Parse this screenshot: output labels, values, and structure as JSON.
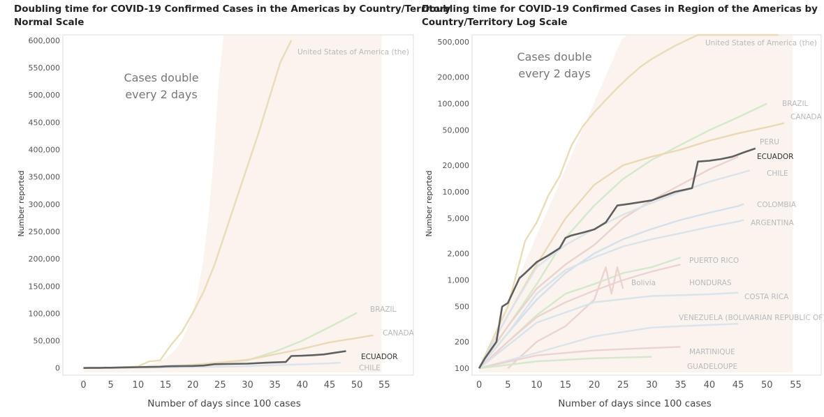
{
  "panels": [
    {
      "title_line1": "Doubling time for COVID-19 Confirmed Cases in the Americas by Country/Territory",
      "title_line2": "Normal Scale"
    },
    {
      "title_line1": "Doubling time for COVID-19 Confirmed Cases in Region of the Americas by",
      "title_line2": "Country/Territory Log Scale"
    }
  ],
  "chart_data": [
    {
      "type": "line",
      "title": "Doubling time for COVID-19 Confirmed Cases in the Americas by Country/Territory Normal Scale",
      "xlabel": "Number of days since 100 cases",
      "ylabel": "Number reported",
      "scale": "linear",
      "xlim": [
        -3,
        57
      ],
      "ylim": [
        -8000,
        610000
      ],
      "xticks": [
        0,
        5,
        10,
        15,
        20,
        25,
        30,
        35,
        40,
        45,
        50,
        55
      ],
      "yticks": [
        0,
        50000,
        100000,
        150000,
        200000,
        250000,
        300000,
        350000,
        400000,
        450000,
        500000,
        550000,
        600000
      ],
      "ytick_labels": [
        "0",
        "50,000",
        "100,000",
        "150,000",
        "200,000",
        "250,000",
        "300,000",
        "350,000",
        "400,000",
        "450,000",
        "500,000",
        "550,000",
        "600,000"
      ],
      "annotation": "Cases double every 2 days",
      "annotation_lines": [
        "Cases double",
        "every 2 days"
      ],
      "series": [
        {
          "name": "United States of America (the)",
          "label": "United States of America (the)",
          "color": "#eadcb8",
          "x": [
            0,
            5,
            10,
            12,
            14,
            16,
            18,
            20,
            22,
            24,
            26,
            28,
            30,
            32,
            34,
            36,
            38
          ],
          "y": [
            100,
            500,
            3000,
            12000,
            14000,
            42000,
            66000,
            101000,
            140000,
            190000,
            250000,
            310000,
            370000,
            430000,
            495000,
            560000,
            600000
          ]
        },
        {
          "name": "BRAZIL",
          "label": "BRAZIL",
          "color": "#d5e8cc",
          "x": [
            0,
            10,
            20,
            30,
            35,
            40,
            45,
            50
          ],
          "y": [
            100,
            1500,
            6000,
            14000,
            30000,
            50000,
            75000,
            101000
          ]
        },
        {
          "name": "CANADA",
          "label": "CANADA",
          "color": "#ecd8b4",
          "x": [
            0,
            10,
            20,
            30,
            40,
            45,
            50,
            53
          ],
          "y": [
            100,
            700,
            5000,
            15000,
            35000,
            47000,
            55000,
            60000
          ]
        },
        {
          "name": "CHILE",
          "label": "CHILE",
          "color": "#dde3ea",
          "x": [
            0,
            10,
            20,
            30,
            40,
            45,
            47
          ],
          "y": [
            100,
            400,
            1500,
            3500,
            6800,
            8500,
            9700
          ]
        },
        {
          "name": "ECUADOR",
          "label": "ECUADOR",
          "color": "#5f5f5f",
          "x": [
            0,
            1,
            3,
            4,
            5,
            7,
            8,
            10,
            12,
            14,
            15,
            16,
            18,
            20,
            22,
            24,
            26,
            30,
            34,
            37,
            38,
            40,
            42,
            44,
            46,
            48
          ],
          "y": [
            100,
            130,
            200,
            500,
            550,
            1050,
            1200,
            1600,
            1900,
            2300,
            3000,
            3200,
            3450,
            3750,
            4500,
            7000,
            7300,
            8000,
            10000,
            11000,
            22000,
            22500,
            23500,
            25000,
            28000,
            31000
          ]
        }
      ]
    },
    {
      "type": "line",
      "title": "Doubling time for COVID-19 Confirmed Cases in Region of the Americas by Country/Territory Log Scale",
      "xlabel": "Number of days since 100 cases",
      "ylabel": "Number reported",
      "scale": "log",
      "xlim": [
        -0.5,
        57
      ],
      "ylim": [
        90,
        600000
      ],
      "xticks": [
        0,
        5,
        10,
        15,
        20,
        25,
        30,
        35,
        40,
        45,
        50,
        55
      ],
      "yticks": [
        100,
        200,
        500,
        1000,
        2000,
        5000,
        10000,
        20000,
        50000,
        100000,
        200000,
        500000
      ],
      "ytick_labels": [
        "100",
        "200",
        "500",
        "1,000",
        "2,000",
        "5,000",
        "10,000",
        "20,000",
        "50,000",
        "100,000",
        "200,000",
        "500,000"
      ],
      "annotation": "Cases double every 2 days",
      "annotation_lines": [
        "Cases double",
        "every 2 days"
      ],
      "series": [
        {
          "name": "United States of America (the)",
          "label": "United States of America (the)",
          "color": "#eadcb8",
          "x": [
            0,
            5,
            8,
            10,
            12,
            14,
            16,
            18,
            20,
            22,
            24,
            26,
            28,
            30,
            32,
            34,
            36,
            38,
            40,
            44,
            48,
            52
          ],
          "y": [
            100,
            500,
            2800,
            4500,
            9000,
            15000,
            33000,
            55000,
            80000,
            110000,
            150000,
            200000,
            260000,
            320000,
            380000,
            450000,
            520000,
            600000,
            650000,
            700000,
            750000,
            800000
          ]
        },
        {
          "name": "BRAZIL",
          "label": "BRAZIL",
          "color": "#d5e8cc",
          "x": [
            0,
            5,
            10,
            15,
            20,
            25,
            30,
            35,
            40,
            45,
            50
          ],
          "y": [
            100,
            300,
            900,
            3000,
            7000,
            14000,
            23000,
            34000,
            50000,
            70000,
            100000
          ]
        },
        {
          "name": "CANADA",
          "label": "CANADA",
          "color": "#ecd8b4",
          "x": [
            0,
            5,
            10,
            15,
            20,
            25,
            30,
            35,
            40,
            45,
            50,
            53
          ],
          "y": [
            100,
            400,
            1500,
            5000,
            12000,
            20000,
            25000,
            30000,
            38000,
            46000,
            54000,
            60000
          ]
        },
        {
          "name": "PERU",
          "label": "PERU",
          "color": "#ead3cc",
          "x": [
            0,
            5,
            10,
            15,
            20,
            25,
            30,
            35,
            40,
            45
          ],
          "y": [
            100,
            300,
            800,
            1500,
            2500,
            5000,
            8000,
            12000,
            18000,
            25000
          ]
        },
        {
          "name": "CHILE",
          "label": "CHILE",
          "color": "#dde3ea",
          "x": [
            0,
            5,
            10,
            15,
            20,
            25,
            30,
            35,
            40,
            45,
            47
          ],
          "y": [
            100,
            400,
            1400,
            2500,
            3800,
            5500,
            7500,
            10000,
            13000,
            16000,
            17500
          ]
        },
        {
          "name": "COLOMBIA",
          "label": "COLOMBIA",
          "color": "#d5e0ea",
          "x": [
            0,
            5,
            10,
            15,
            20,
            25,
            30,
            35,
            40,
            45,
            46
          ],
          "y": [
            100,
            250,
            600,
            1200,
            2000,
            2900,
            3800,
            4800,
            5800,
            6900,
            7300
          ]
        },
        {
          "name": "ARGENTINA",
          "label": "ARGENTINA",
          "color": "#dbe3ea",
          "x": [
            0,
            5,
            10,
            15,
            20,
            25,
            30,
            35,
            40,
            45,
            46
          ],
          "y": [
            100,
            250,
            700,
            1300,
            1800,
            2400,
            2900,
            3400,
            4000,
            4600,
            4800
          ]
        },
        {
          "name": "PUERTO RICO",
          "label": "PUERTO RICO",
          "color": "#d5e8cc",
          "x": [
            0,
            5,
            10,
            15,
            20,
            25,
            30,
            35
          ],
          "y": [
            100,
            200,
            400,
            700,
            900,
            1200,
            1400,
            1800
          ]
        },
        {
          "name": "Bolivia",
          "label": "Bolivia",
          "color": "#ecd3cf",
          "x": [
            5,
            10,
            15,
            20,
            22,
            23,
            24,
            25
          ],
          "y": [
            100,
            200,
            300,
            600,
            1400,
            700,
            1400,
            800
          ]
        },
        {
          "name": "HONDURAS",
          "label": "HONDURAS",
          "color": "#ecd3cf",
          "x": [
            0,
            5,
            10,
            15,
            20,
            25,
            30,
            35
          ],
          "y": [
            100,
            200,
            380,
            560,
            760,
            1000,
            1250,
            1500
          ]
        },
        {
          "name": "COSTA RICA",
          "label": "COSTA RICA",
          "color": "#d9e3ea",
          "x": [
            0,
            10,
            20,
            30,
            40,
            45
          ],
          "y": [
            100,
            330,
            560,
            660,
            690,
            720
          ]
        },
        {
          "name": "VENEZUELA (BOLIVARIAN REPUBLIC OF)",
          "label": "VENEZUELA (BOLIVARIAN REPUBLIC OF)",
          "color": "#dde3ea",
          "x": [
            0,
            10,
            20,
            30,
            35,
            40,
            45
          ],
          "y": [
            100,
            150,
            230,
            290,
            300,
            310,
            320
          ]
        },
        {
          "name": "MARTINIQUE",
          "label": "MARTINIQUE",
          "color": "#ecd3cf",
          "x": [
            0,
            10,
            20,
            30,
            35
          ],
          "y": [
            100,
            140,
            160,
            170,
            175
          ]
        },
        {
          "name": "GUADELOUPE",
          "label": "GUADELOUPE",
          "color": "#d5e8cc",
          "x": [
            0,
            10,
            20,
            30
          ],
          "y": [
            100,
            120,
            130,
            135
          ]
        },
        {
          "name": "ECUADOR",
          "label": "ECUADOR",
          "color": "#5f5f5f",
          "x": [
            0,
            1,
            3,
            4,
            5,
            7,
            8,
            10,
            12,
            14,
            15,
            16,
            18,
            20,
            22,
            24,
            26,
            30,
            34,
            37,
            38,
            40,
            42,
            44,
            46,
            48
          ],
          "y": [
            100,
            130,
            200,
            500,
            550,
            1050,
            1200,
            1600,
            1900,
            2300,
            3000,
            3200,
            3450,
            3750,
            4500,
            7000,
            7300,
            8000,
            10000,
            11000,
            22000,
            22500,
            23500,
            25000,
            28000,
            31000
          ]
        }
      ]
    }
  ]
}
